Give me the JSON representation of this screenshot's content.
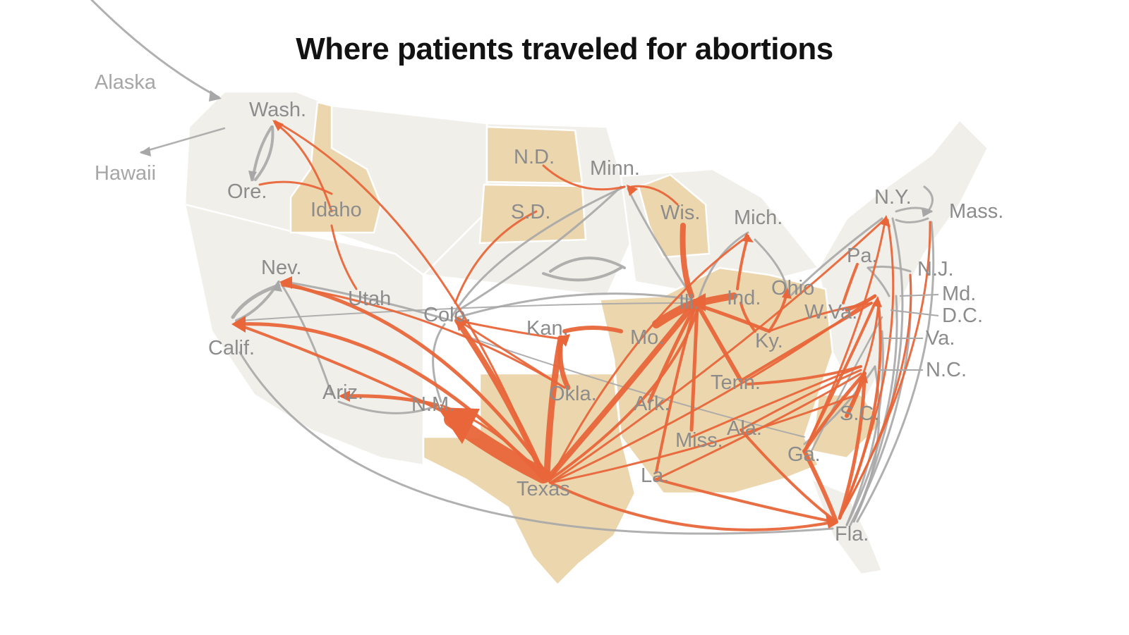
{
  "title": "Where patients traveled for abortions",
  "colors": {
    "ban_state": "#ecd6ae",
    "other_state": "#f1efea",
    "flow_from_ban_state": "#e8663a",
    "flow_other": "#a7a7a7"
  },
  "labels": {
    "alaska": "Alaska",
    "hawaii": "Hawaii",
    "wash": "Wash.",
    "ore": "Ore.",
    "idaho": "Idaho",
    "nev": "Nev.",
    "utah": "Utah",
    "calif": "Calif.",
    "ariz": "Ariz.",
    "nm": "N.M.",
    "colo": "Colo.",
    "nd": "N.D.",
    "sd": "S.D.",
    "minn": "Minn.",
    "wis": "Wis.",
    "mich": "Mich.",
    "kan": "Kan.",
    "mo": "Mo.",
    "ill": "Ill.",
    "ind": "Ind.",
    "ohio": "Ohio",
    "ky": "Ky.",
    "wva": "W.Va.",
    "okla": "Okla.",
    "ark": "Ark.",
    "tenn": "Tenn.",
    "miss": "Miss.",
    "ala": "Ala.",
    "la": "La.",
    "ga": "Ga.",
    "sc": "S.C.",
    "fla": "Fla.",
    "texas": "Texas",
    "ny": "N.Y.",
    "pa": "Pa.",
    "mass": "Mass.",
    "nj": "N.J.",
    "md": "Md.",
    "dc": "D.C.",
    "va": "Va.",
    "nc": "N.C."
  }
}
